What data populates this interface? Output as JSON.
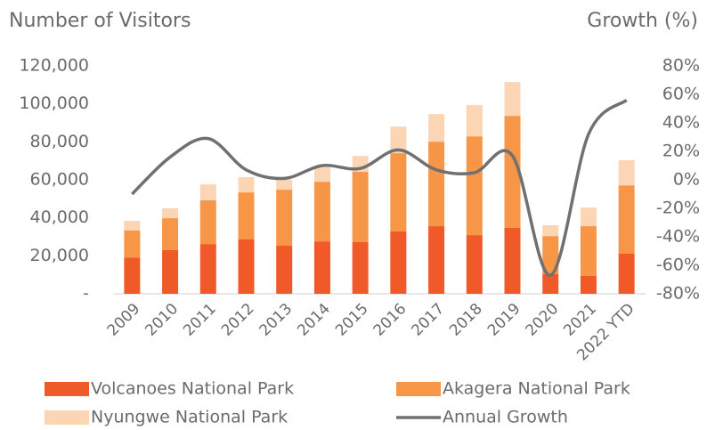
{
  "chart_data": {
    "type": "bar",
    "y_label": "Number of Visitors",
    "y2_label": "Growth (%)",
    "categories": [
      "2009",
      "2010",
      "2011",
      "2012",
      "2013",
      "2014",
      "2015",
      "2016",
      "2017",
      "2018",
      "2019",
      "2020",
      "2021",
      "2022 YTD"
    ],
    "series": [
      {
        "name": "Volcanoes National Park",
        "color": "#f05a28",
        "values": [
          19000,
          23000,
          26200,
          28600,
          25300,
          27600,
          27200,
          32800,
          35600,
          30900,
          34700,
          10300,
          9400,
          21100
        ]
      },
      {
        "name": "Akagera National Park",
        "color": "#f79646",
        "values": [
          14300,
          16800,
          23000,
          24800,
          29500,
          31400,
          37000,
          41200,
          44500,
          52000,
          59000,
          20100,
          26200,
          36000
        ]
      },
      {
        "name": "Nyungwe National Park",
        "color": "#fcd5b4",
        "values": [
          5100,
          5200,
          8400,
          8000,
          5200,
          7500,
          8400,
          14000,
          14500,
          16400,
          17800,
          5700,
          9800,
          13200
        ]
      },
      {
        "name": "Annual Growth",
        "color": "#707070",
        "type": "line",
        "axis": "y2",
        "values": [
          -10,
          16,
          29,
          7,
          1,
          10,
          8,
          21,
          7,
          5,
          17,
          -67,
          32,
          56
        ]
      }
    ],
    "stacked": true,
    "ylim": [
      0,
      120000
    ],
    "yticks": [
      {
        "value": 0,
        "label": "-"
      },
      {
        "value": 20000,
        "label": "20,000"
      },
      {
        "value": 40000,
        "label": "40,000"
      },
      {
        "value": 60000,
        "label": "60,000"
      },
      {
        "value": 80000,
        "label": "80,000"
      },
      {
        "value": 100000,
        "label": "100,000"
      },
      {
        "value": 120000,
        "label": "120,000"
      }
    ],
    "y2lim": [
      -80,
      80
    ],
    "y2ticks": [
      {
        "value": -80,
        "label": "-80%"
      },
      {
        "value": -60,
        "label": "-60%"
      },
      {
        "value": -40,
        "label": "-40%"
      },
      {
        "value": -20,
        "label": "-20%"
      },
      {
        "value": 0,
        "label": "0%"
      },
      {
        "value": 20,
        "label": "20%"
      },
      {
        "value": 40,
        "label": "40%"
      },
      {
        "value": 60,
        "label": "60%"
      },
      {
        "value": 80,
        "label": "80%"
      }
    ],
    "grid": false
  }
}
